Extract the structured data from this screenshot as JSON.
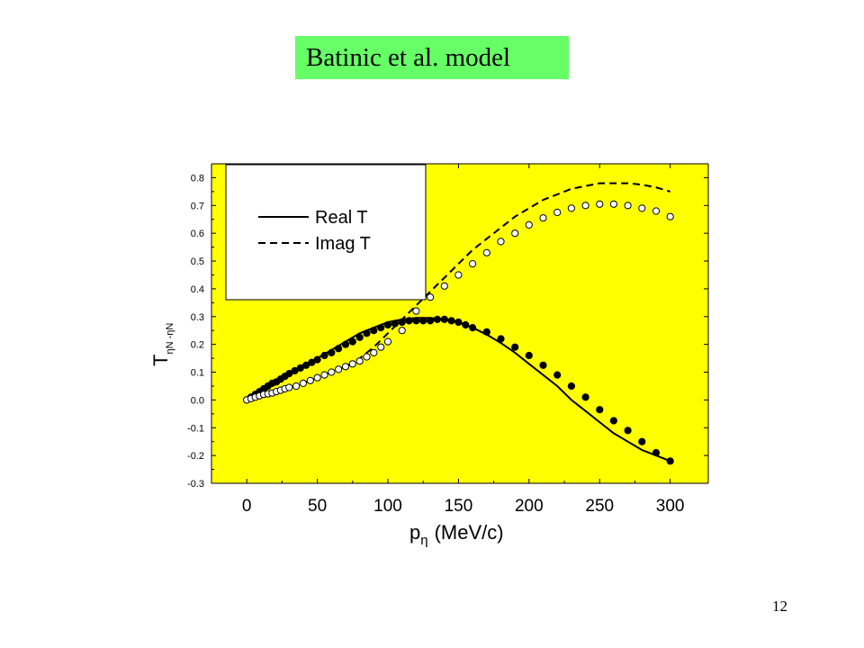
{
  "slide": {
    "title": "Batinic et al. model",
    "page_number": "12"
  },
  "colors": {
    "title_background": "#66ff66",
    "plot_background": "#ffff00",
    "legend_background": "#ffffff",
    "ink": "#000000"
  },
  "chart_data": {
    "type": "line",
    "xlabel_main": "p",
    "xlabel_sub": "η",
    "xlabel_units": "(MeV/c)",
    "ylabel_main": "T",
    "ylabel_sub": "ηN -ηN",
    "xlim": [
      -25,
      327
    ],
    "ylim": [
      -0.3,
      0.85
    ],
    "xticks": [
      0,
      50,
      100,
      150,
      200,
      250,
      300
    ],
    "xtick_labels": [
      "0",
      "50",
      "100",
      "150",
      "200",
      "250",
      "300"
    ],
    "yticks": [
      -0.3,
      -0.2,
      -0.1,
      0.0,
      0.1,
      0.2,
      0.3,
      0.4,
      0.5,
      0.6,
      0.7,
      0.8
    ],
    "ytick_labels": [
      "-0.3",
      "-0.2",
      "-0.1",
      "0.0",
      "0.1",
      "0.2",
      "0.3",
      "0.4",
      "0.5",
      "0.6",
      "0.7",
      "0.8"
    ],
    "grid": false,
    "legend_position": "top-left",
    "series": [
      {
        "name": "Real T",
        "style": "solid",
        "x": [
          0,
          10,
          20,
          30,
          40,
          50,
          60,
          70,
          80,
          90,
          100,
          110,
          120,
          130,
          140,
          150,
          160,
          170,
          180,
          190,
          200,
          210,
          220,
          230,
          240,
          250,
          260,
          270,
          280,
          290,
          300
        ],
        "y": [
          0.0,
          0.03,
          0.06,
          0.09,
          0.12,
          0.15,
          0.18,
          0.21,
          0.24,
          0.26,
          0.28,
          0.29,
          0.295,
          0.295,
          0.29,
          0.28,
          0.26,
          0.235,
          0.205,
          0.17,
          0.13,
          0.09,
          0.05,
          0.0,
          -0.04,
          -0.08,
          -0.12,
          -0.15,
          -0.18,
          -0.2,
          -0.22
        ]
      },
      {
        "name": "Imag T",
        "style": "dashed",
        "x": [
          0,
          10,
          20,
          30,
          40,
          50,
          60,
          70,
          80,
          90,
          100,
          110,
          120,
          130,
          140,
          150,
          160,
          170,
          180,
          190,
          200,
          210,
          220,
          230,
          240,
          250,
          260,
          270,
          280,
          290,
          300
        ],
        "y": [
          0.0,
          0.015,
          0.03,
          0.045,
          0.06,
          0.08,
          0.1,
          0.12,
          0.15,
          0.19,
          0.24,
          0.29,
          0.34,
          0.39,
          0.44,
          0.49,
          0.54,
          0.58,
          0.62,
          0.66,
          0.69,
          0.72,
          0.74,
          0.76,
          0.77,
          0.78,
          0.78,
          0.78,
          0.775,
          0.765,
          0.75
        ]
      },
      {
        "name": "",
        "style": "filled-markers",
        "x": [
          0,
          3,
          6,
          9,
          12,
          15,
          18,
          21,
          24,
          27,
          30,
          34,
          38,
          42,
          46,
          50,
          55,
          60,
          65,
          70,
          75,
          80,
          85,
          90,
          95,
          100,
          105,
          110,
          115,
          120,
          125,
          130,
          135,
          140,
          145,
          150,
          155,
          160,
          170,
          180,
          190,
          200,
          210,
          220,
          230,
          240,
          250,
          260,
          270,
          280,
          290,
          300
        ],
        "y": [
          0.0,
          0.01,
          0.02,
          0.03,
          0.04,
          0.05,
          0.06,
          0.065,
          0.075,
          0.085,
          0.095,
          0.105,
          0.115,
          0.125,
          0.135,
          0.145,
          0.16,
          0.17,
          0.185,
          0.2,
          0.21,
          0.225,
          0.24,
          0.25,
          0.26,
          0.27,
          0.275,
          0.28,
          0.285,
          0.285,
          0.285,
          0.285,
          0.29,
          0.29,
          0.285,
          0.28,
          0.27,
          0.26,
          0.245,
          0.22,
          0.19,
          0.16,
          0.125,
          0.09,
          0.05,
          0.01,
          -0.035,
          -0.075,
          -0.11,
          -0.15,
          -0.19,
          -0.22
        ]
      },
      {
        "name": "",
        "style": "open-markers",
        "x": [
          0,
          3,
          6,
          9,
          12,
          15,
          18,
          21,
          24,
          27,
          30,
          35,
          40,
          45,
          50,
          55,
          60,
          65,
          70,
          75,
          80,
          85,
          90,
          95,
          100,
          110,
          120,
          130,
          140,
          150,
          160,
          170,
          180,
          190,
          200,
          210,
          220,
          230,
          240,
          250,
          260,
          270,
          280,
          290,
          300
        ],
        "y": [
          0.0,
          0.005,
          0.01,
          0.015,
          0.02,
          0.022,
          0.025,
          0.03,
          0.035,
          0.04,
          0.045,
          0.05,
          0.06,
          0.07,
          0.08,
          0.09,
          0.1,
          0.11,
          0.12,
          0.13,
          0.14,
          0.155,
          0.17,
          0.19,
          0.21,
          0.25,
          0.32,
          0.37,
          0.41,
          0.45,
          0.49,
          0.53,
          0.57,
          0.6,
          0.63,
          0.655,
          0.675,
          0.69,
          0.7,
          0.705,
          0.705,
          0.7,
          0.69,
          0.68,
          0.66
        ]
      }
    ]
  }
}
